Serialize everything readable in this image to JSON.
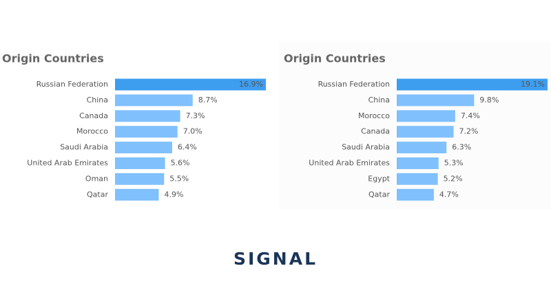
{
  "chart_data": [
    {
      "type": "bar",
      "orientation": "horizontal",
      "title": "Origin Countries",
      "categories": [
        "Russian Federation",
        "China",
        "Canada",
        "Morocco",
        "Saudi Arabia",
        "United Arab Emirates",
        "Oman",
        "Qatar"
      ],
      "values": [
        16.9,
        8.7,
        7.3,
        7.0,
        6.4,
        5.6,
        5.5,
        4.9
      ],
      "value_labels": [
        "16.9%",
        "8.7%",
        "7.3%",
        "7.0%",
        "6.4%",
        "5.6%",
        "5.5%",
        "4.9%"
      ],
      "colors": [
        "#3d9ef0",
        "#80c0fc",
        "#80c0fc",
        "#80c0fc",
        "#80c0fc",
        "#80c0fc",
        "#80c0fc",
        "#80c0fc"
      ]
    },
    {
      "type": "bar",
      "orientation": "horizontal",
      "title": "Origin Countries",
      "categories": [
        "Russian Federation",
        "China",
        "Morocco",
        "Canada",
        "Saudi Arabia",
        "United Arab Emirates",
        "Egypt",
        "Qatar"
      ],
      "values": [
        19.1,
        9.8,
        7.4,
        7.2,
        6.3,
        5.3,
        5.2,
        4.7
      ],
      "value_labels": [
        "19.1%",
        "9.8%",
        "7.4%",
        "7.2%",
        "6.3%",
        "5.3%",
        "5.2%",
        "4.7%"
      ],
      "colors": [
        "#3d9ef0",
        "#80c0fc",
        "#80c0fc",
        "#80c0fc",
        "#80c0fc",
        "#80c0fc",
        "#80c0fc",
        "#80c0fc"
      ]
    }
  ],
  "logo": "SIGNAL"
}
